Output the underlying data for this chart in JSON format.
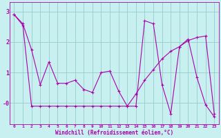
{
  "xlabel": "Windchill (Refroidissement éolien,°C)",
  "background_color": "#c8f0f0",
  "line_color": "#aa00aa",
  "grid_color": "#99cccc",
  "xlim": [
    -0.5,
    23.5
  ],
  "ylim": [
    -0.7,
    3.3
  ],
  "yticks": [
    0,
    1,
    2,
    3
  ],
  "ytick_labels": [
    "-0",
    "1",
    "2",
    "3"
  ],
  "xtick_labels": [
    "0",
    "1",
    "2",
    "3",
    "4",
    "5",
    "6",
    "7",
    "8",
    "9",
    "10",
    "11",
    "12",
    "13",
    "14",
    "15",
    "16",
    "17",
    "18",
    "19",
    "20",
    "21",
    "22",
    "23"
  ],
  "series1_x": [
    0,
    1,
    2,
    3,
    4,
    5,
    6,
    7,
    8,
    9,
    10,
    11,
    12,
    13,
    14,
    15,
    16,
    17,
    18,
    19,
    20,
    21,
    22,
    23
  ],
  "series1_y": [
    2.9,
    2.6,
    1.75,
    0.6,
    1.35,
    0.65,
    0.65,
    0.75,
    0.45,
    0.35,
    1.0,
    1.05,
    0.4,
    -0.1,
    -0.1,
    2.7,
    2.6,
    0.6,
    -0.35,
    1.85,
    2.1,
    0.85,
    -0.05,
    -0.45
  ],
  "series2_x": [
    0,
    1,
    2,
    3,
    4,
    5,
    6,
    7,
    8,
    9,
    10,
    11,
    12,
    13,
    14,
    15,
    16,
    17,
    18,
    19,
    20,
    21,
    22,
    23
  ],
  "series2_y": [
    2.9,
    2.55,
    -0.1,
    -0.1,
    -0.1,
    -0.1,
    -0.1,
    -0.1,
    -0.1,
    -0.1,
    -0.1,
    -0.1,
    -0.1,
    -0.1,
    0.3,
    0.75,
    1.1,
    1.45,
    1.7,
    1.85,
    2.05,
    2.15,
    2.2,
    -0.35
  ]
}
